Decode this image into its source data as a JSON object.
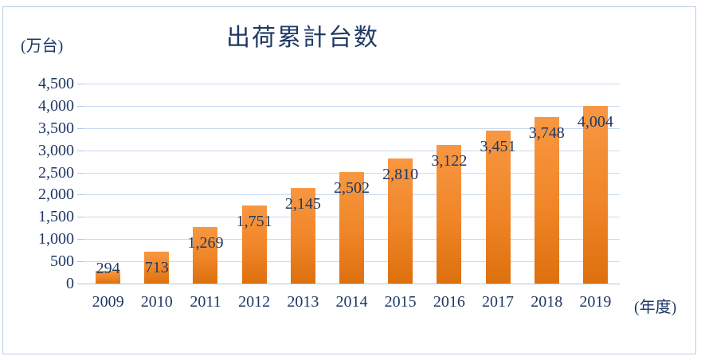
{
  "chart_data": {
    "type": "bar",
    "title": "出荷累計台数",
    "ylabel": "(万台)",
    "xlabel": "(年度)",
    "categories": [
      "2009",
      "2010",
      "2011",
      "2012",
      "2013",
      "2014",
      "2015",
      "2016",
      "2017",
      "2018",
      "2019"
    ],
    "values": [
      294,
      713,
      1269,
      1751,
      2145,
      2502,
      2810,
      3122,
      3451,
      3748,
      4004
    ],
    "value_labels": [
      "294",
      "713",
      "1,269",
      "1,751",
      "2,145",
      "2,502",
      "2,810",
      "3,122",
      "3,451",
      "3,748",
      "4,004"
    ],
    "ylim": [
      0,
      4500
    ],
    "ytick_interval": 500,
    "yticks": [
      "0",
      "500",
      "1,000",
      "1,500",
      "2,000",
      "2,500",
      "3,000",
      "3,500",
      "4,000",
      "4,500"
    ],
    "grid": true,
    "legend": false,
    "data_label_position": "inside-end"
  },
  "colors": {
    "text": "#1f3864",
    "gridline": "#c9d9ee",
    "axis_line": "#aec7e4",
    "border": "#b9cde5",
    "bar_gradient_top": "#f89742",
    "bar_gradient_bottom": "#dd700e",
    "background": "#ffffff"
  }
}
